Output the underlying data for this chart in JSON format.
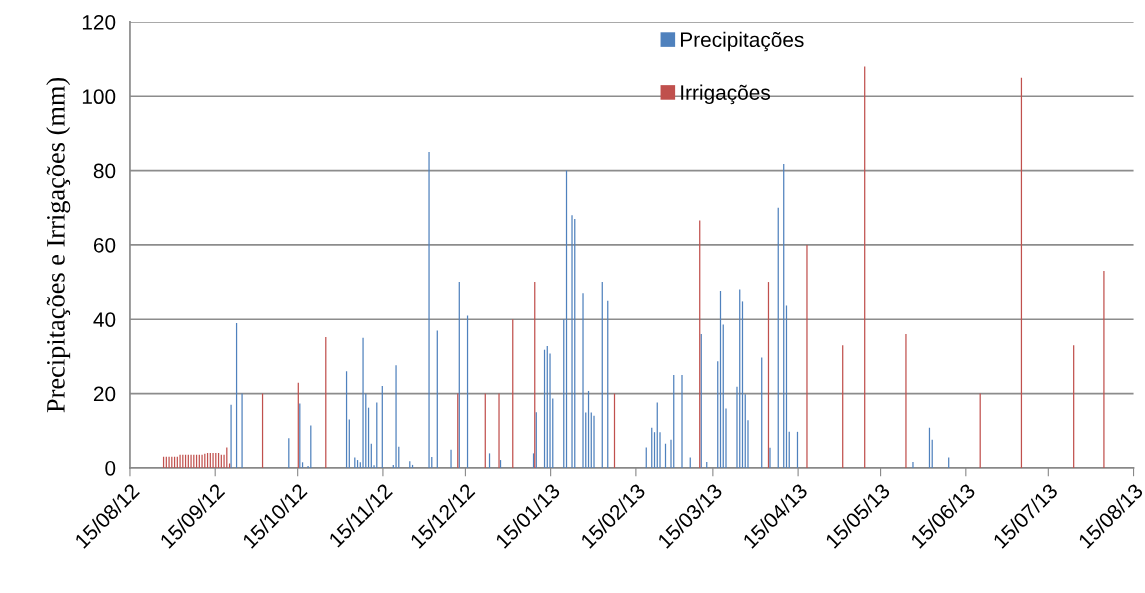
{
  "chart_data": {
    "type": "bar",
    "ylabel": "Precipitações e Irrigações (mm)",
    "xlim": [
      "2012-08-15",
      "2013-08-15"
    ],
    "xticks": [
      {
        "value": "2012-08-15",
        "label": "15/08/12"
      },
      {
        "value": "2012-09-15",
        "label": "15/09/12"
      },
      {
        "value": "2012-10-15",
        "label": "15/10/12"
      },
      {
        "value": "2012-11-15",
        "label": "15/11/12"
      },
      {
        "value": "2012-12-15",
        "label": "15/12/12"
      },
      {
        "value": "2013-01-15",
        "label": "15/01/13"
      },
      {
        "value": "2013-02-15",
        "label": "15/02/13"
      },
      {
        "value": "2013-03-15",
        "label": "15/03/13"
      },
      {
        "value": "2013-04-15",
        "label": "15/04/13"
      },
      {
        "value": "2013-05-15",
        "label": "15/05/13"
      },
      {
        "value": "2013-06-15",
        "label": "15/06/13"
      },
      {
        "value": "2013-07-15",
        "label": "15/07/13"
      },
      {
        "value": "2013-08-15",
        "label": "15/08/13"
      }
    ],
    "ylim": [
      0,
      120
    ],
    "yticks": [
      0,
      20,
      40,
      60,
      80,
      100,
      120
    ],
    "grid": "y",
    "legend": "top",
    "series": [
      {
        "name": "Precipitações",
        "color": "#4f81bd",
        "x": [
          "2012-09-21",
          "2012-09-23",
          "2012-09-25",
          "2012-10-12",
          "2012-10-16",
          "2012-10-17",
          "2012-10-19",
          "2012-10-20",
          "2012-11-02",
          "2012-11-03",
          "2012-11-05",
          "2012-11-06",
          "2012-11-07",
          "2012-11-08",
          "2012-11-09",
          "2012-11-10",
          "2012-11-11",
          "2012-11-12",
          "2012-11-13",
          "2012-11-15",
          "2012-11-19",
          "2012-11-20",
          "2012-11-21",
          "2012-11-25",
          "2012-11-26",
          "2012-12-02",
          "2012-12-03",
          "2012-12-05",
          "2012-12-10",
          "2012-12-13",
          "2012-12-16",
          "2012-12-24",
          "2012-12-28",
          "2013-01-09",
          "2013-01-10",
          "2013-01-13",
          "2013-01-14",
          "2013-01-15",
          "2013-01-16",
          "2013-01-20",
          "2013-01-21",
          "2013-01-23",
          "2013-01-24",
          "2013-01-27",
          "2013-01-28",
          "2013-01-29",
          "2013-01-30",
          "2013-01-31",
          "2013-02-03",
          "2013-02-05",
          "2013-02-19",
          "2013-02-21",
          "2013-02-22",
          "2013-02-23",
          "2013-02-24",
          "2013-02-26",
          "2013-02-28",
          "2013-03-01",
          "2013-03-04",
          "2013-03-07",
          "2013-03-11",
          "2013-03-13",
          "2013-03-17",
          "2013-03-18",
          "2013-03-19",
          "2013-03-20",
          "2013-03-24",
          "2013-03-25",
          "2013-03-26",
          "2013-03-27",
          "2013-03-28",
          "2013-04-02",
          "2013-04-05",
          "2013-04-08",
          "2013-04-10",
          "2013-04-11",
          "2013-04-12",
          "2013-04-15",
          "2013-05-27",
          "2013-06-02",
          "2013-06-03",
          "2013-06-09"
        ],
        "values": [
          17,
          39,
          20,
          8,
          17.3,
          1.5,
          0.5,
          11.4,
          26,
          13,
          2.8,
          2.1,
          1.5,
          35,
          20,
          16.2,
          6.5,
          0.7,
          17.6,
          22,
          0.8,
          27.6,
          5.7,
          1.8,
          0.8,
          85,
          2.9,
          37,
          4.9,
          50,
          41,
          3.9,
          2.1,
          3.9,
          15,
          31.8,
          32.8,
          30.8,
          18.7,
          40,
          80,
          68,
          67,
          47,
          14.9,
          20.7,
          14.9,
          14,
          50,
          45,
          5.5,
          10.8,
          9.6,
          17.6,
          9.6,
          6.5,
          7.6,
          25,
          25,
          2.8,
          36,
          1.6,
          28.7,
          47.6,
          38.6,
          16,
          21.8,
          48,
          44.8,
          19.8,
          12.8,
          29.7,
          5.4,
          70,
          81.8,
          43.7,
          9.7,
          9.7,
          1.6,
          10.8,
          7.6,
          2.8
        ]
      },
      {
        "name": "Irrigações",
        "color": "#c0504d",
        "x": [
          "2012-08-27",
          "2012-08-28",
          "2012-08-29",
          "2012-08-30",
          "2012-08-31",
          "2012-09-01",
          "2012-09-02",
          "2012-09-03",
          "2012-09-04",
          "2012-09-05",
          "2012-09-06",
          "2012-09-07",
          "2012-09-08",
          "2012-09-09",
          "2012-09-10",
          "2012-09-11",
          "2012-09-12",
          "2012-09-13",
          "2012-09-14",
          "2012-09-15",
          "2012-09-16",
          "2012-09-17",
          "2012-09-18",
          "2012-09-19",
          "2012-09-20",
          "2012-10-02",
          "2012-10-15",
          "2012-10-25",
          "2012-12-12",
          "2012-12-22",
          "2012-12-27",
          "2013-01-01",
          "2013-01-09",
          "2013-02-07",
          "2013-03-10",
          "2013-04-04",
          "2013-04-18",
          "2013-05-01",
          "2013-05-09",
          "2013-05-24",
          "2013-06-20",
          "2013-07-05",
          "2013-07-24",
          "2013-08-04"
        ],
        "values": [
          3,
          3,
          3,
          3,
          3,
          3,
          3.5,
          3.5,
          3.5,
          3.5,
          3.5,
          3.5,
          3.5,
          3.5,
          3.5,
          3.8,
          4,
          4,
          4,
          4,
          4,
          3.5,
          3.5,
          5.5,
          1.2,
          20,
          22.9,
          35.2,
          20,
          20,
          20,
          40,
          50,
          20,
          66.6,
          50,
          60,
          33,
          108,
          36,
          20,
          105,
          33,
          53
        ]
      }
    ]
  }
}
